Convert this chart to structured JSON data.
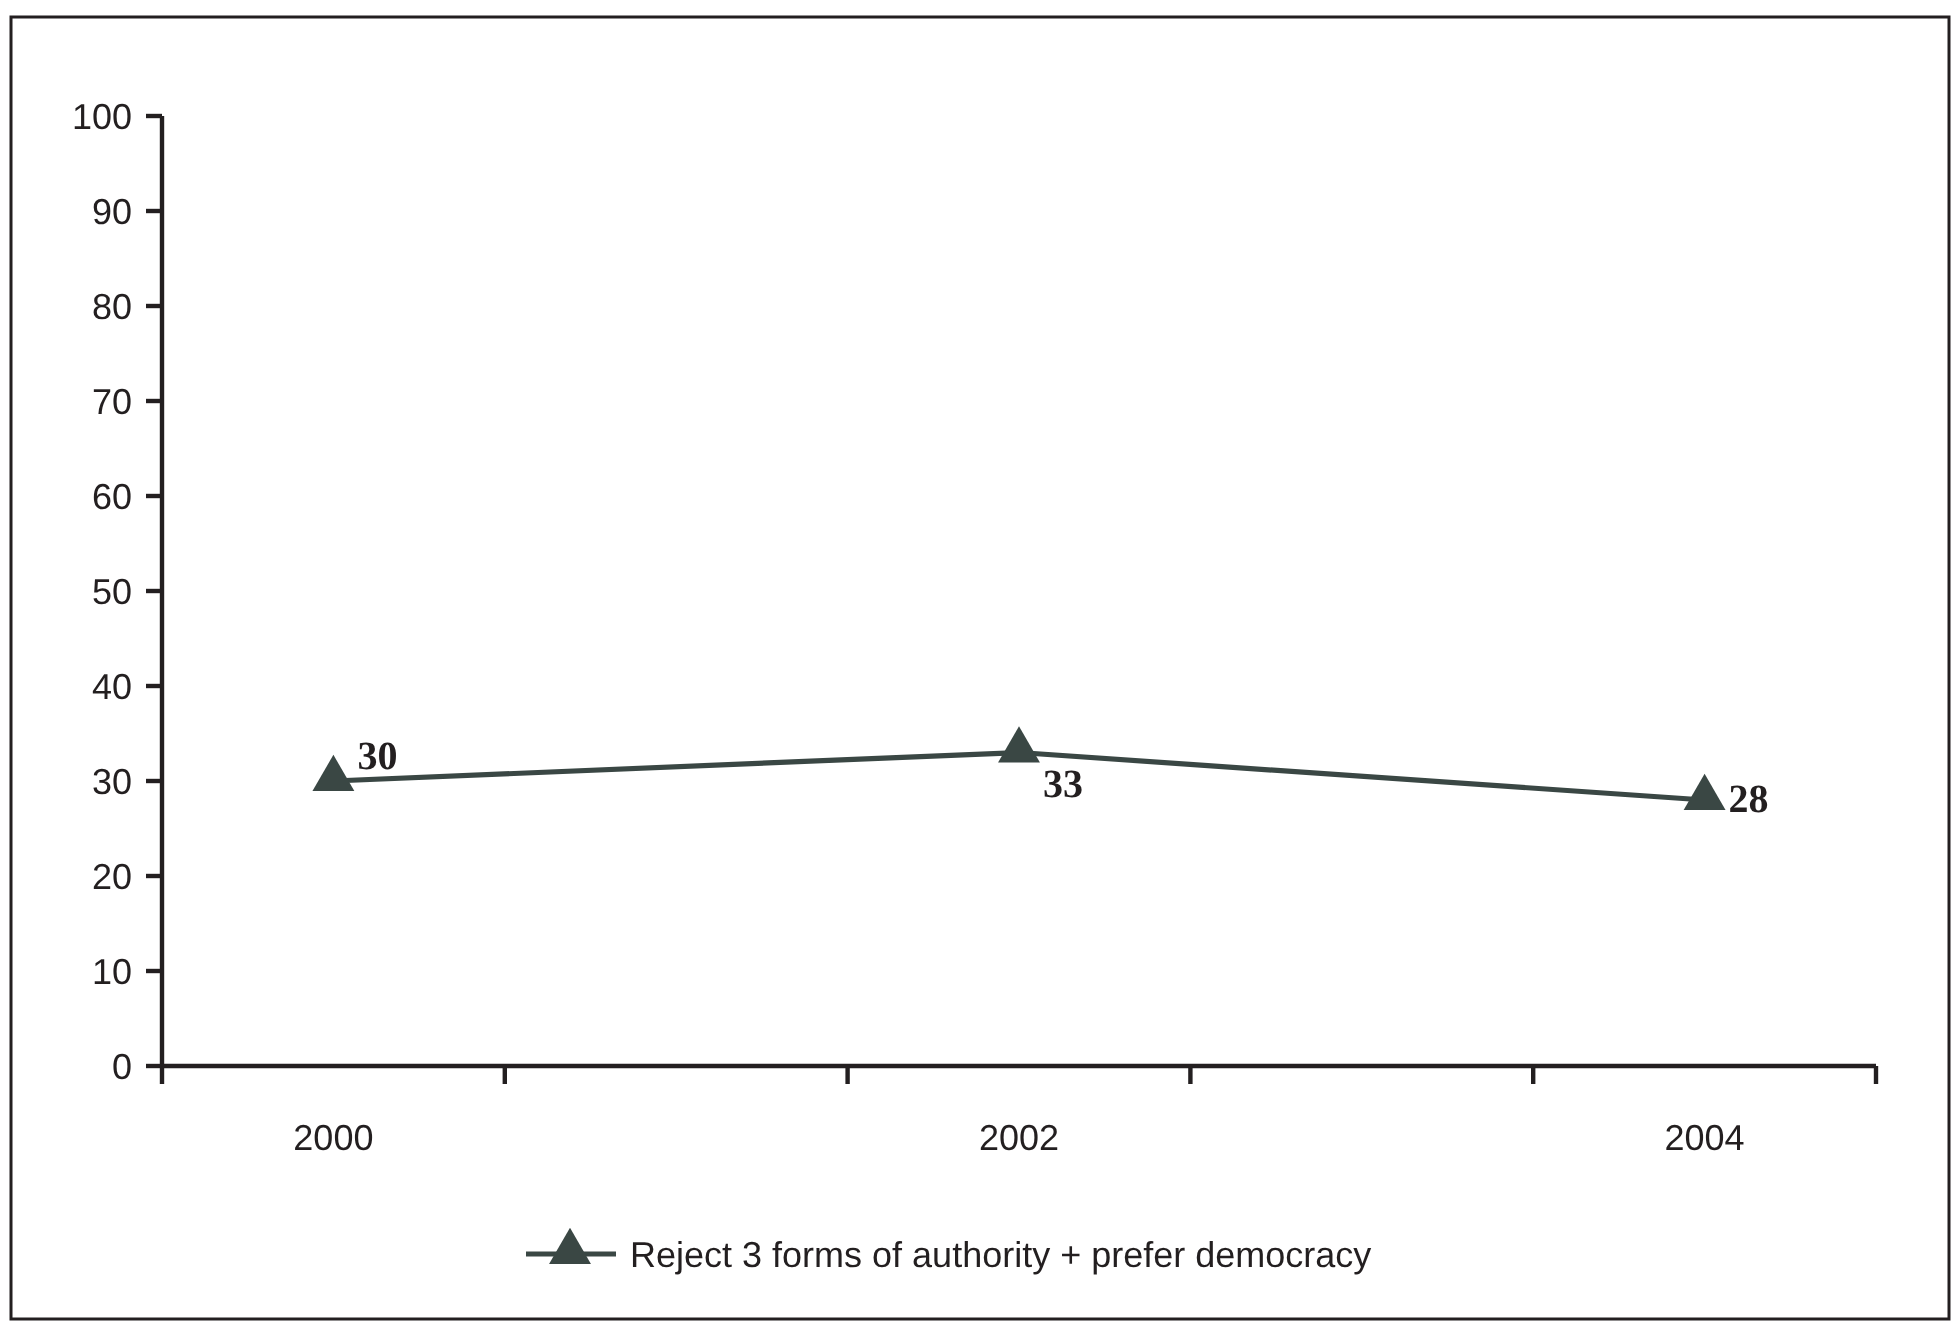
{
  "chart_data": {
    "type": "line",
    "x": [
      2000,
      2002,
      2004
    ],
    "xlim": [
      1999.5,
      2004.5
    ],
    "xticks": [
      {
        "value": 1999.5,
        "label": null
      },
      2000,
      {
        "value": 2000.5,
        "label": null
      },
      {
        "value": 2001.5,
        "label": null
      },
      2002,
      {
        "value": 2002.5,
        "label": null
      },
      {
        "value": 2003.5,
        "label": null
      },
      2004,
      {
        "value": 2004.5,
        "label": null
      }
    ],
    "ylim": [
      0,
      100
    ],
    "yticks": [
      0,
      10,
      20,
      30,
      40,
      50,
      60,
      70,
      80,
      90,
      100
    ],
    "series": [
      {
        "name": "Reject 3 forms of authority + prefer democracy",
        "color": "#3a4744",
        "values": [
          30,
          33,
          28
        ]
      }
    ],
    "data_labels": true,
    "legend": "bottom",
    "marker": "triangle"
  }
}
